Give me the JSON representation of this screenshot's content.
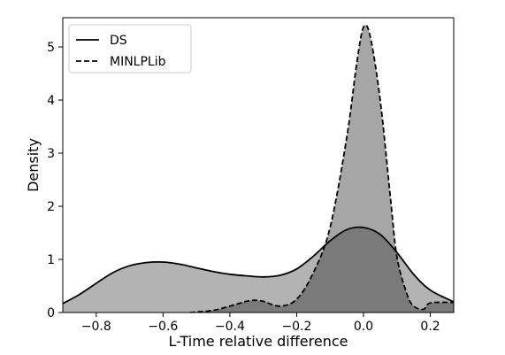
{
  "chart_data": {
    "type": "area",
    "title": "",
    "xlabel": "L-Time relative difference",
    "ylabel": "Density",
    "xlim": [
      -0.9,
      0.27
    ],
    "ylim": [
      0,
      5.55
    ],
    "xticks": [
      -0.8,
      -0.6,
      -0.4,
      -0.2,
      0.0,
      0.2
    ],
    "xtick_labels": [
      "−0.8",
      "−0.6",
      "−0.4",
      "−0.2",
      "0.0",
      "0.2"
    ],
    "yticks": [
      0,
      1,
      2,
      3,
      4,
      5
    ],
    "ytick_labels": [
      "0",
      "1",
      "2",
      "3",
      "4",
      "5"
    ],
    "grid": false,
    "legend_position": "top-left",
    "series": [
      {
        "name": "DS",
        "line_style": "solid",
        "fill_color": "#b3b3b3",
        "x": [
          -0.9,
          -0.85,
          -0.8,
          -0.75,
          -0.7,
          -0.65,
          -0.6,
          -0.55,
          -0.5,
          -0.45,
          -0.4,
          -0.35,
          -0.3,
          -0.25,
          -0.2,
          -0.15,
          -0.1,
          -0.05,
          0.0,
          0.05,
          0.1,
          0.15,
          0.2,
          0.27
        ],
        "y": [
          0.17,
          0.34,
          0.55,
          0.75,
          0.88,
          0.94,
          0.95,
          0.91,
          0.84,
          0.77,
          0.72,
          0.69,
          0.67,
          0.7,
          0.82,
          1.06,
          1.35,
          1.56,
          1.6,
          1.47,
          1.13,
          0.72,
          0.42,
          0.2
        ]
      },
      {
        "name": "MINLPLib",
        "line_style": "dashed",
        "fill_color": "#a6a6a6",
        "x": [
          -0.52,
          -0.45,
          -0.4,
          -0.35,
          -0.325,
          -0.3,
          -0.25,
          -0.2,
          -0.15,
          -0.1,
          -0.05,
          -0.02,
          0.0,
          0.02,
          0.05,
          0.08,
          0.1,
          0.13,
          0.15,
          0.18,
          0.2,
          0.27
        ],
        "y": [
          0.0,
          0.04,
          0.12,
          0.21,
          0.23,
          0.21,
          0.12,
          0.25,
          0.75,
          1.6,
          3.3,
          4.7,
          5.37,
          5.2,
          4.0,
          2.2,
          1.05,
          0.35,
          0.12,
          0.06,
          0.18,
          0.19
        ]
      }
    ],
    "overlap_color": "#7a7a7a"
  }
}
